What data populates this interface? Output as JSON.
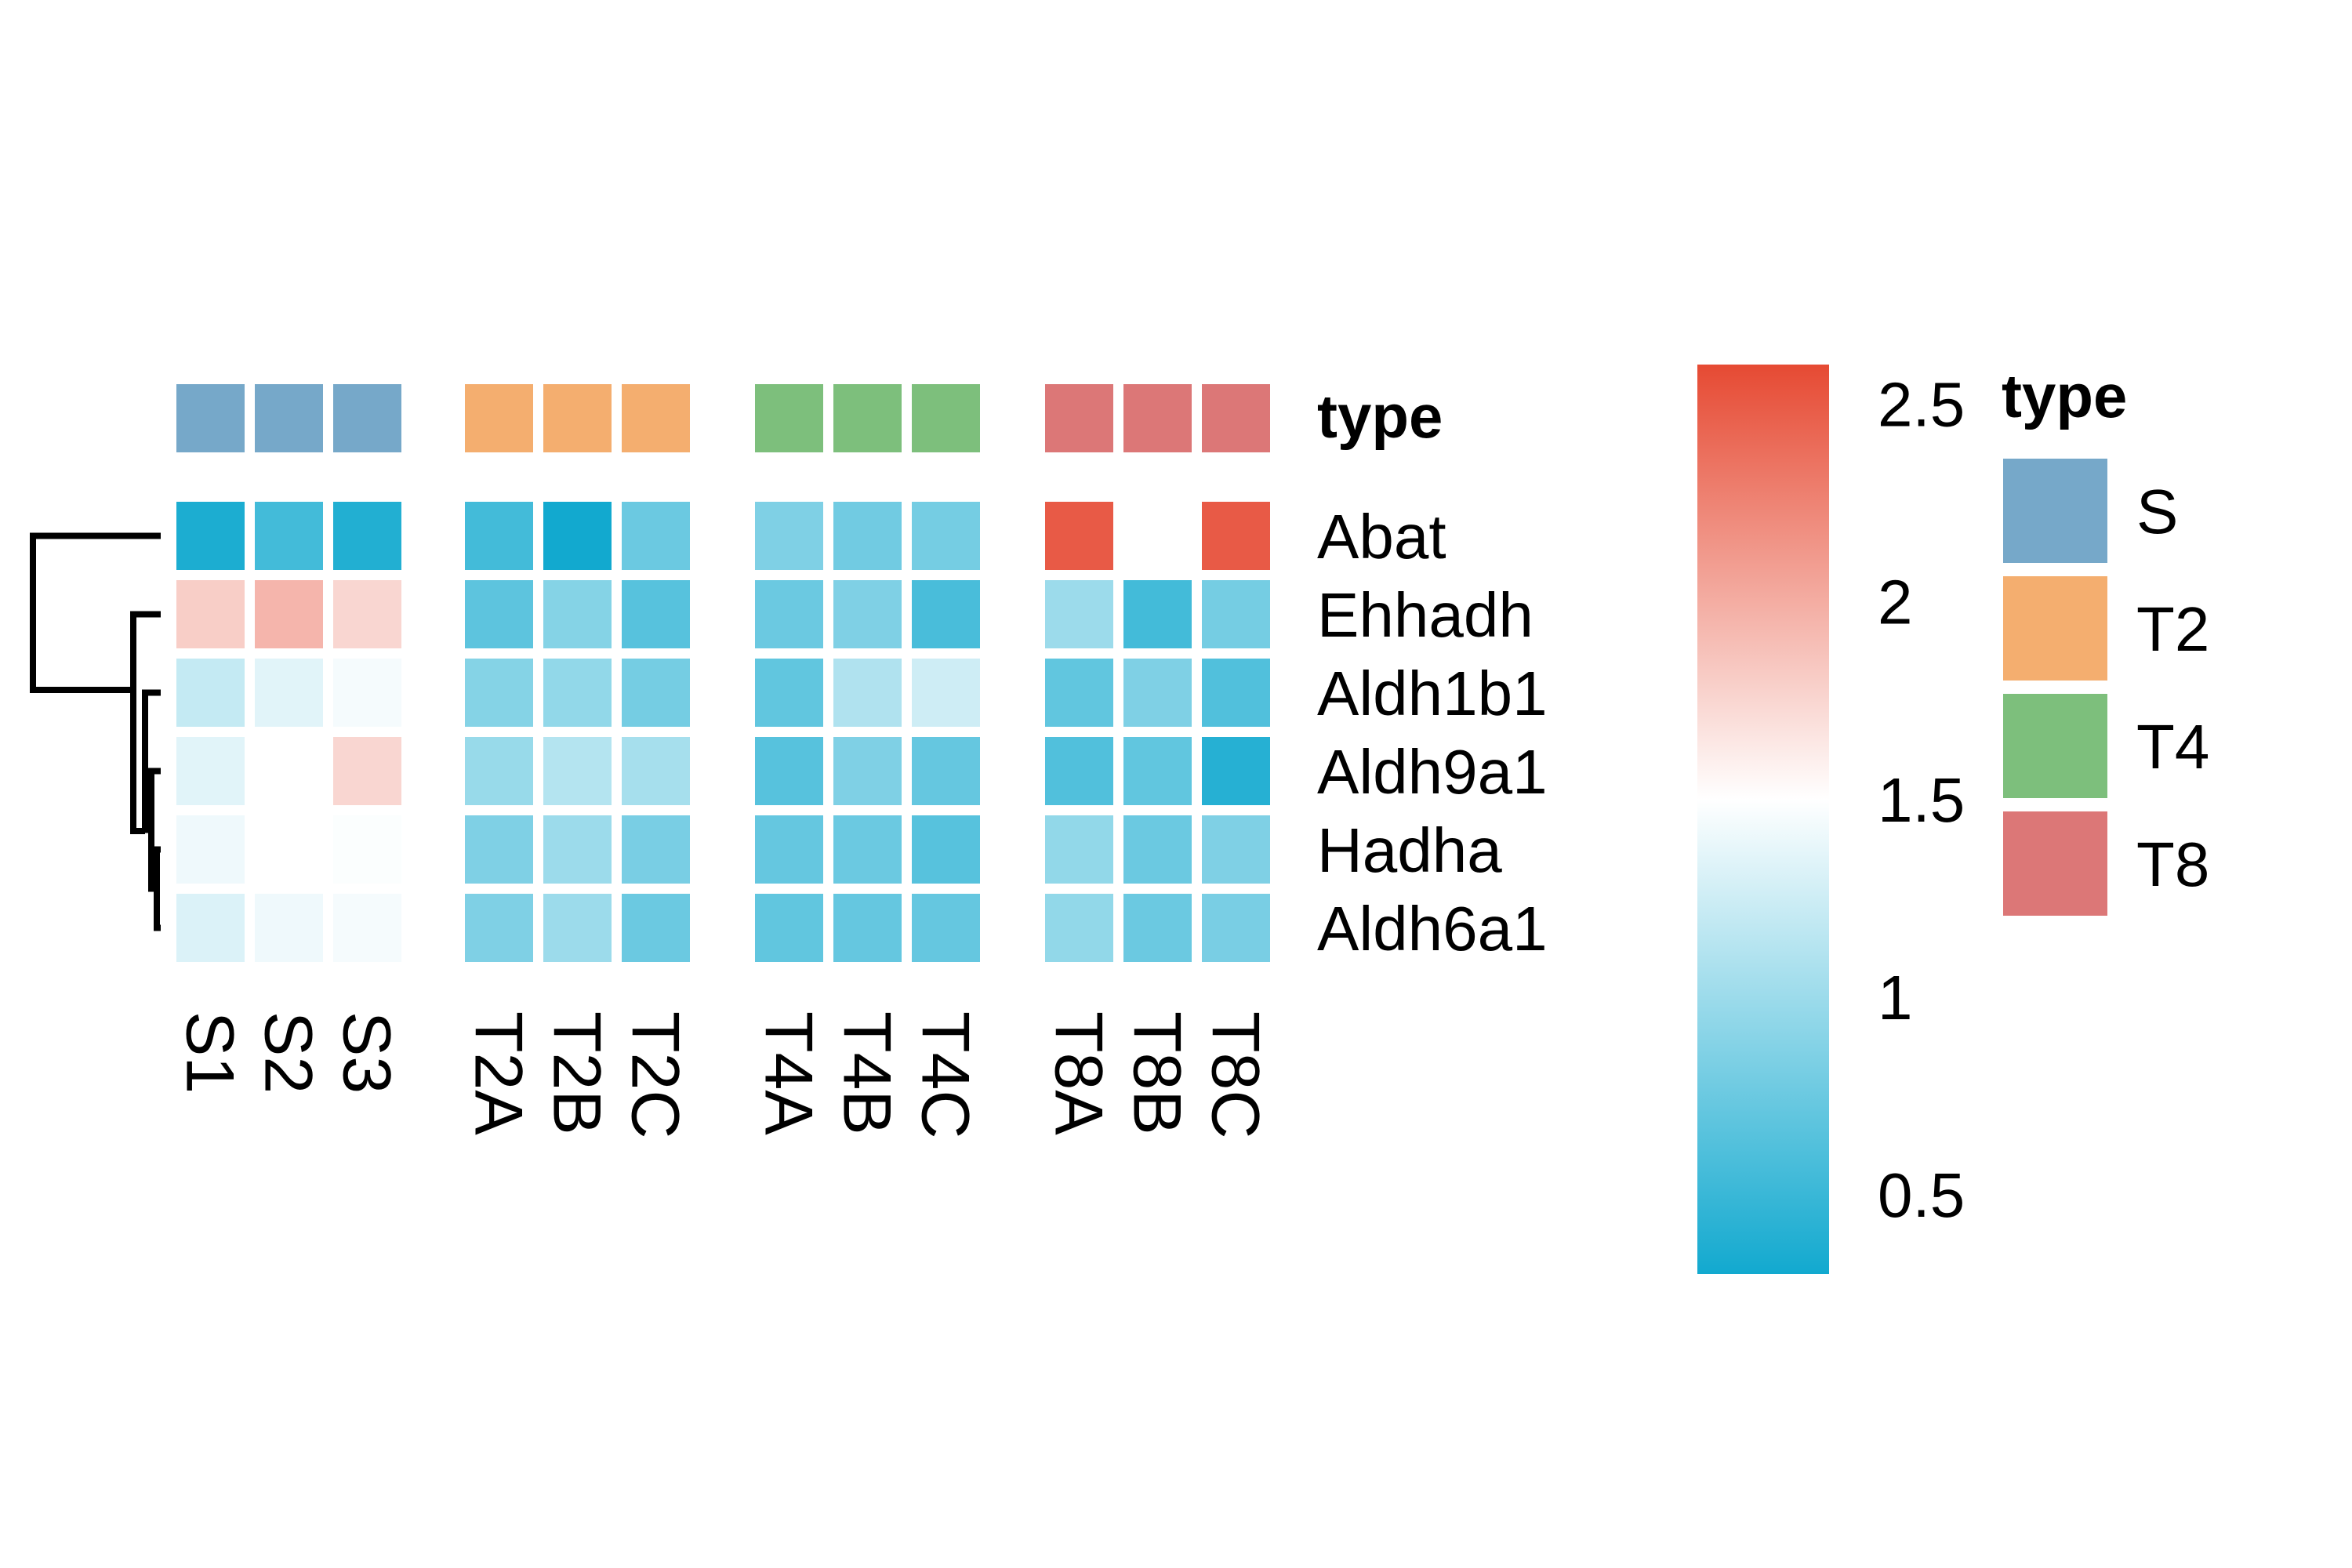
{
  "chart_data": {
    "type": "heatmap",
    "annotation_title": "type",
    "annotation_legend_title": "type",
    "columns": [
      "S1",
      "S2",
      "S3",
      "T2A",
      "T2B",
      "T2C",
      "T4A",
      "T4B",
      "T4C",
      "T8A",
      "T8B",
      "T8C"
    ],
    "column_types": [
      "S",
      "S",
      "S",
      "T2",
      "T2",
      "T2",
      "T4",
      "T4",
      "T4",
      "T8",
      "T8",
      "T8"
    ],
    "groups": [
      "S",
      "T2",
      "T4",
      "T8"
    ],
    "group_colors": {
      "S": "#76A8C9",
      "T2": "#F4AE6F",
      "T4": "#7DBF7C",
      "T8": "#DC7777"
    },
    "rows": [
      "Abat",
      "Ehhadh",
      "Aldh1b1",
      "Aldh9a1",
      "Hadha",
      "Aldh6a1"
    ],
    "values": [
      [
        0.35,
        0.55,
        0.38,
        0.55,
        0.3,
        0.75,
        0.85,
        0.78,
        0.8,
        2.5,
        1.5,
        2.5
      ],
      [
        1.8,
        1.95,
        1.75,
        0.68,
        0.88,
        0.65,
        0.75,
        0.85,
        0.58,
        1.0,
        0.55,
        0.8
      ],
      [
        1.2,
        1.35,
        1.45,
        0.88,
        0.95,
        0.8,
        0.7,
        1.1,
        1.25,
        0.7,
        0.85,
        0.62
      ],
      [
        1.35,
        1.5,
        1.75,
        0.98,
        1.12,
        1.05,
        0.65,
        0.85,
        0.72,
        0.62,
        0.7,
        0.4
      ],
      [
        1.42,
        1.5,
        1.48,
        0.85,
        1.0,
        0.82,
        0.72,
        0.75,
        0.65,
        0.95,
        0.75,
        0.85
      ],
      [
        1.32,
        1.42,
        1.45,
        0.85,
        1.0,
        0.75,
        0.7,
        0.72,
        0.72,
        0.95,
        0.75,
        0.82
      ]
    ],
    "color_scale": {
      "min": 0.3,
      "mid": 1.5,
      "max": 2.6,
      "low_color": "#12A9CF",
      "mid_color": "#FFFFFF",
      "high_color": "#E64A33"
    },
    "colorbar_ticks": [
      "0.5",
      "1",
      "1.5",
      "2",
      "2.5"
    ],
    "row_dendrogram": true
  }
}
